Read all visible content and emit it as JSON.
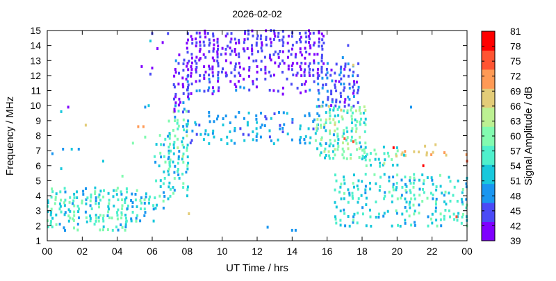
{
  "chart_data": {
    "type": "scatter",
    "title": "2026-02-02",
    "xlabel": "UT Time / hrs",
    "ylabel": "Frequency / MHz",
    "xlim": [
      0,
      24
    ],
    "ylim": [
      1,
      15
    ],
    "x_tick_labels": [
      "00",
      "02",
      "04",
      "06",
      "08",
      "10",
      "12",
      "14",
      "16",
      "18",
      "20",
      "22",
      "00"
    ],
    "y_tick_labels": [
      "1",
      "2",
      "3",
      "4",
      "5",
      "6",
      "7",
      "8",
      "9",
      "10",
      "11",
      "12",
      "13",
      "14",
      "15"
    ],
    "grid": false,
    "colorbar": {
      "label": "Signal Amplitude / dB",
      "range": [
        39,
        81
      ],
      "tick_labels": [
        "39",
        "42",
        "45",
        "48",
        "51",
        "54",
        "57",
        "60",
        "63",
        "66",
        "69",
        "72",
        "75",
        "78",
        "81"
      ],
      "colors": [
        "#7f00ff",
        "#4a4af6",
        "#1a96f0",
        "#18c8dc",
        "#4ff0cc",
        "#82fbb0",
        "#bcf092",
        "#e3cc78",
        "#ff9a55",
        "#ff5432",
        "#ff0000"
      ]
    },
    "sample_step_hours": 0.25,
    "sample_step_mhz": 0.2,
    "regions": [
      {
        "t": [
          0.0,
          4.6
        ],
        "f": [
          1.7,
          4.5
        ],
        "db": [
          48,
          62
        ],
        "density": 0.55
      },
      {
        "t": [
          4.6,
          6.2
        ],
        "f": [
          2.3,
          4.3
        ],
        "db": [
          48,
          60
        ],
        "density": 0.5
      },
      {
        "t": [
          6.2,
          7.0
        ],
        "f": [
          3.0,
          8.0
        ],
        "db": [
          48,
          60
        ],
        "density": 0.4
      },
      {
        "t": [
          7.0,
          8.0
        ],
        "f": [
          4.0,
          9.6
        ],
        "db": [
          48,
          63
        ],
        "density": 0.55
      },
      {
        "t": [
          7.3,
          8.1
        ],
        "f": [
          9.6,
          13.5
        ],
        "db": [
          39,
          49
        ],
        "density": 0.5
      },
      {
        "t": [
          8.0,
          15.8
        ],
        "f": [
          12.0,
          15.0
        ],
        "db": [
          39,
          46
        ],
        "density": 0.55
      },
      {
        "t": [
          8.0,
          15.6
        ],
        "f": [
          10.8,
          12.0
        ],
        "db": [
          39,
          48
        ],
        "density": 0.25
      },
      {
        "t": [
          8.0,
          15.5
        ],
        "f": [
          7.5,
          9.6
        ],
        "db": [
          45,
          54
        ],
        "density": 0.3
      },
      {
        "t": [
          15.5,
          17.8
        ],
        "f": [
          10.0,
          12.8
        ],
        "db": [
          42,
          50
        ],
        "density": 0.45
      },
      {
        "t": [
          15.4,
          18.2
        ],
        "f": [
          6.5,
          10.0
        ],
        "db": [
          50,
          66
        ],
        "density": 0.6
      },
      {
        "t": [
          18.0,
          20.0
        ],
        "f": [
          6.0,
          7.3
        ],
        "db": [
          51,
          63
        ],
        "density": 0.6
      },
      {
        "t": [
          20.0,
          24.0
        ],
        "f": [
          6.7,
          6.9
        ],
        "db": [
          66,
          71
        ],
        "density": 0.35
      },
      {
        "t": [
          16.5,
          24.0
        ],
        "f": [
          2.0,
          5.5
        ],
        "db": [
          48,
          60
        ],
        "density": 0.35
      }
    ],
    "points": [
      [
        0.3,
        6.8,
        50
      ],
      [
        0.8,
        9.6,
        51
      ],
      [
        1.2,
        9.9,
        42
      ],
      [
        0.9,
        7.1,
        48
      ],
      [
        1.4,
        7.1,
        51
      ],
      [
        1.8,
        7.1,
        50
      ],
      [
        2.2,
        8.7,
        69
      ],
      [
        0.8,
        5.8,
        51
      ],
      [
        3.2,
        6.3,
        51
      ],
      [
        4.3,
        5.3,
        60
      ],
      [
        4.9,
        7.5,
        60
      ],
      [
        5.2,
        8.6,
        72
      ],
      [
        5.5,
        8.6,
        72
      ],
      [
        5.6,
        9.9,
        48
      ],
      [
        5.8,
        10.0,
        51
      ],
      [
        5.6,
        7.9,
        60
      ],
      [
        5.9,
        14.3,
        51
      ],
      [
        6.0,
        14.8,
        45
      ],
      [
        6.9,
        14.8,
        45
      ],
      [
        6.6,
        14.2,
        42
      ],
      [
        6.3,
        13.8,
        42
      ],
      [
        5.9,
        12.1,
        45
      ],
      [
        6.0,
        12.5,
        42
      ],
      [
        5.4,
        12.6,
        42
      ],
      [
        8.1,
        2.8,
        69
      ],
      [
        17.0,
        7.8,
        75
      ],
      [
        17.5,
        7.6,
        75
      ],
      [
        16.8,
        9.7,
        69
      ],
      [
        19.8,
        7.2,
        78
      ],
      [
        21.6,
        7.3,
        69
      ],
      [
        22.2,
        7.4,
        66
      ],
      [
        21.5,
        6.0,
        78
      ],
      [
        23.4,
        2.6,
        75
      ],
      [
        24.0,
        6.3,
        75
      ],
      [
        20.8,
        9.9,
        48
      ],
      [
        14.0,
        1.7,
        48
      ],
      [
        14.2,
        1.7,
        48
      ],
      [
        12.6,
        1.9,
        48
      ],
      [
        17.5,
        12.7,
        69
      ],
      [
        17.2,
        14.0,
        45
      ],
      [
        16.9,
        13.2,
        48
      ],
      [
        20.4,
        6.7,
        54
      ]
    ]
  }
}
